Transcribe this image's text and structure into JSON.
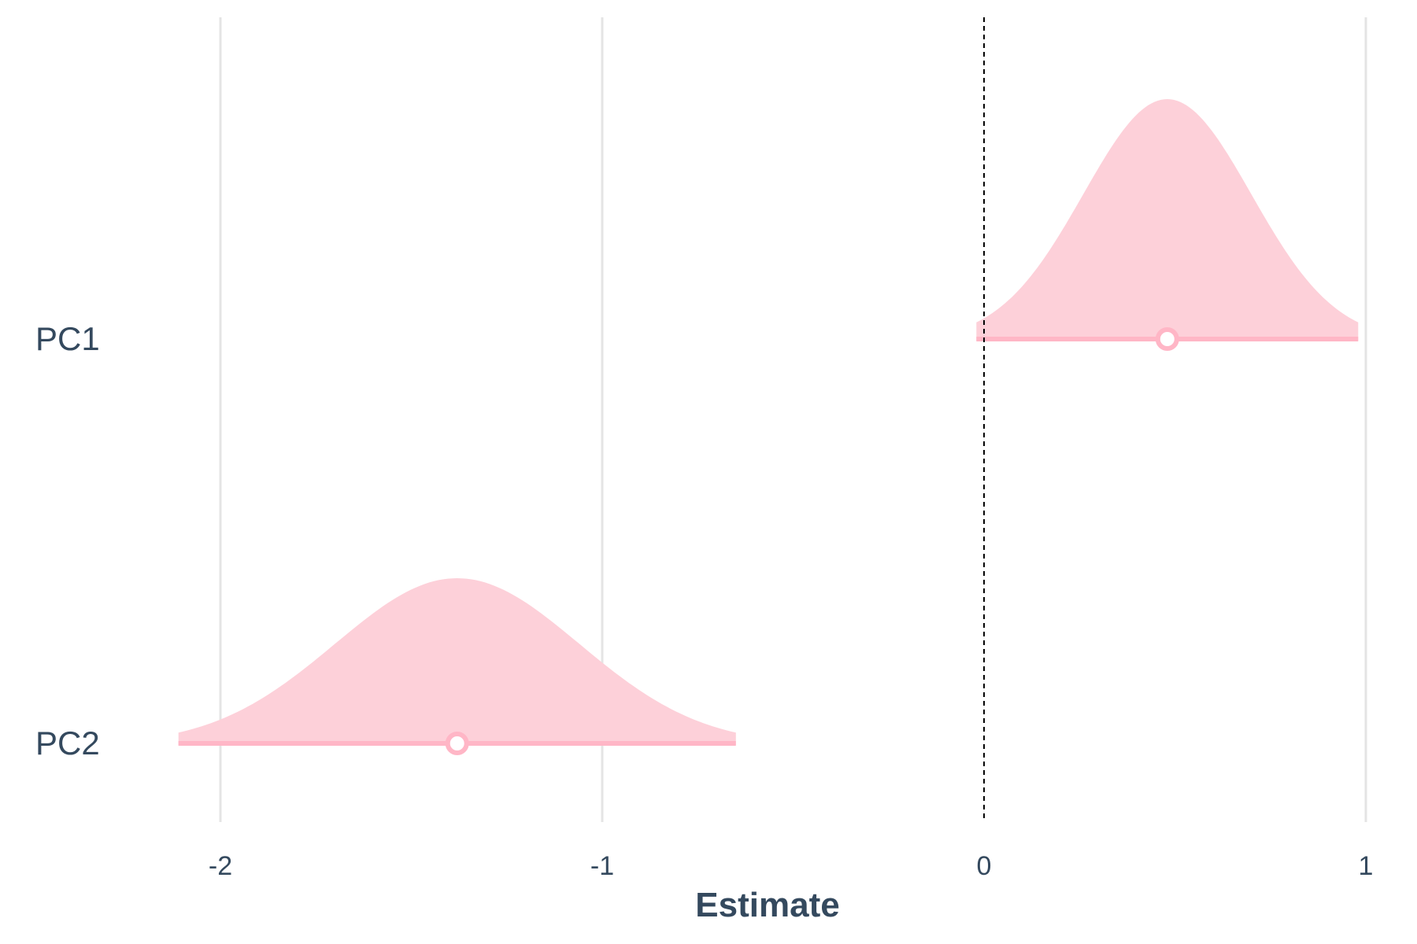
{
  "chart_data": {
    "type": "area",
    "title": "",
    "xlabel": "Estimate",
    "ylabel": "",
    "xlim": [
      -2.2,
      1.05
    ],
    "x_ticks": [
      -2,
      -1,
      0,
      1
    ],
    "x_tick_labels": [
      "-2",
      "-1",
      "0",
      "1"
    ],
    "grid": "vertical",
    "reference_line": {
      "x": 0,
      "style": "dashed",
      "color": "#000000"
    },
    "fill_color": "#fdd0d9",
    "interval_color": "#ffb6c6",
    "series": [
      {
        "name": "PC1",
        "estimate": 0.48,
        "sd": 0.22,
        "ci_low": -0.02,
        "ci_high": 0.98
      },
      {
        "name": "PC2",
        "estimate": -1.38,
        "sd": 0.32,
        "ci_low": -2.11,
        "ci_high": -0.65
      }
    ]
  }
}
